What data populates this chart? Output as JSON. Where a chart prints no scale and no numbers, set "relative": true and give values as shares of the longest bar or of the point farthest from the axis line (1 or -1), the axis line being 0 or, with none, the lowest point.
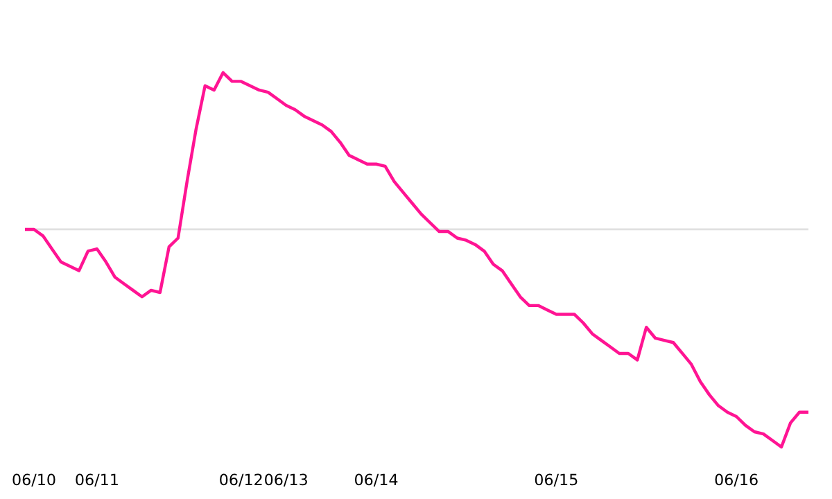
{
  "chart_data": {
    "type": "line",
    "relative": true,
    "color": "#ff1493",
    "grid": false,
    "marker": "none",
    "line_style": "solid",
    "tick_labels": "x",
    "categories": [
      null,
      "06/10",
      null,
      null,
      null,
      null,
      null,
      null,
      "06/11",
      null,
      null,
      null,
      null,
      null,
      null,
      null,
      null,
      null,
      null,
      null,
      null,
      null,
      null,
      null,
      "06/12",
      null,
      null,
      null,
      null,
      "06/13",
      null,
      null,
      null,
      null,
      null,
      null,
      null,
      null,
      null,
      "06/14",
      null,
      null,
      null,
      null,
      null,
      null,
      null,
      null,
      null,
      null,
      null,
      null,
      null,
      null,
      null,
      null,
      null,
      null,
      null,
      "06/15",
      null,
      null,
      null,
      null,
      null,
      null,
      null,
      null,
      null,
      null,
      null,
      null,
      null,
      null,
      null,
      null,
      null,
      null,
      null,
      "06/16",
      null,
      null,
      null,
      null,
      null,
      null,
      null,
      null
    ],
    "values": [
      0,
      0,
      -0.03,
      -0.09,
      -0.15,
      -0.17,
      -0.19,
      -0.1,
      -0.09,
      -0.15,
      -0.22,
      -0.25,
      -0.28,
      -0.31,
      -0.28,
      -0.29,
      -0.08,
      -0.04,
      0.22,
      0.46,
      0.66,
      0.64,
      0.72,
      0.68,
      0.68,
      0.66,
      0.64,
      0.63,
      0.6,
      0.57,
      0.55,
      0.52,
      0.5,
      0.48,
      0.45,
      0.4,
      0.34,
      0.32,
      0.3,
      0.3,
      0.29,
      0.22,
      0.17,
      0.12,
      0.07,
      0.03,
      -0.01,
      -0.01,
      -0.04,
      -0.05,
      -0.07,
      -0.1,
      -0.16,
      -0.19,
      -0.25,
      -0.31,
      -0.35,
      -0.35,
      -0.37,
      -0.39,
      -0.39,
      -0.39,
      -0.43,
      -0.48,
      -0.51,
      -0.54,
      -0.57,
      -0.57,
      -0.6,
      -0.45,
      -0.5,
      -0.51,
      -0.52,
      -0.57,
      -0.62,
      -0.7,
      -0.76,
      -0.81,
      -0.84,
      -0.86,
      -0.9,
      -0.93,
      -0.94,
      -0.97,
      -1,
      -0.89,
      -0.84,
      -0.84
    ]
  }
}
